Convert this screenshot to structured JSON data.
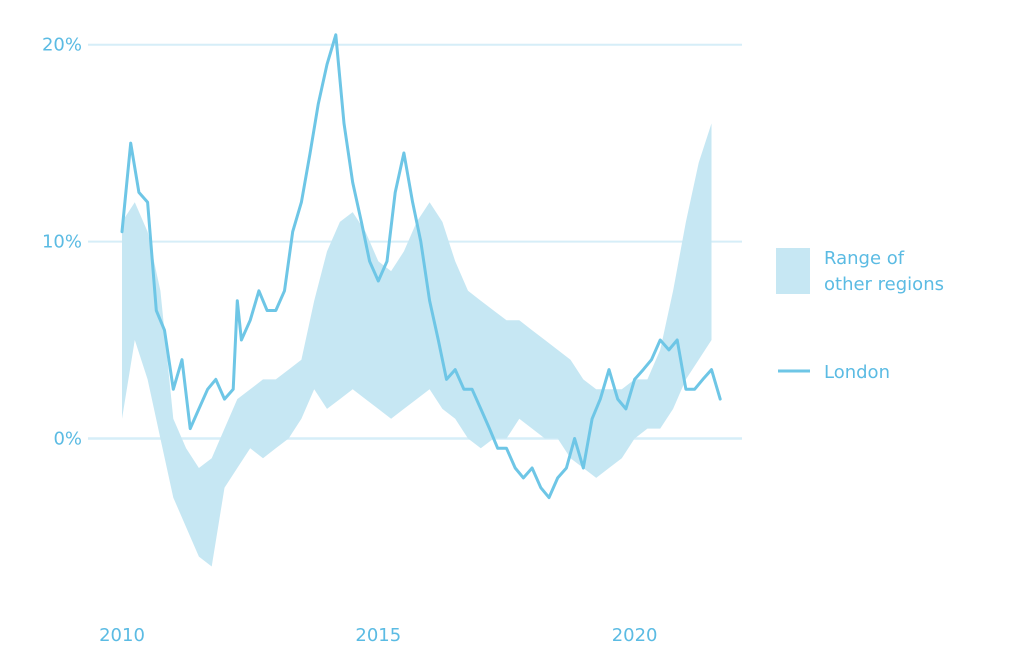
{
  "chart_data": {
    "type": "area",
    "title": "",
    "xlabel": "",
    "ylabel": "",
    "xlim": [
      2010,
      2021.9
    ],
    "ylim": [
      -8,
      21
    ],
    "y_ticks": [
      {
        "value": 0,
        "label": "0%"
      },
      {
        "value": 10,
        "label": "10%"
      },
      {
        "value": 20,
        "label": "20%"
      }
    ],
    "x_ticks": [
      {
        "value": 2010,
        "label": "2010"
      },
      {
        "value": 2015,
        "label": "2015"
      },
      {
        "value": 2020,
        "label": "2020"
      }
    ],
    "grid": true,
    "legend_position": "right",
    "colors": {
      "range": "#c6e7f3",
      "line": "#6ec6e6",
      "text": "#5bbbe3",
      "grid": "#d6eef8"
    },
    "series": [
      {
        "name": "Range of other regions",
        "kind": "band",
        "x": [
          2010.0,
          2010.25,
          2010.5,
          2010.75,
          2011.0,
          2011.25,
          2011.5,
          2011.75,
          2012.0,
          2012.25,
          2012.5,
          2012.75,
          2013.0,
          2013.25,
          2013.5,
          2013.75,
          2014.0,
          2014.25,
          2014.5,
          2014.75,
          2015.0,
          2015.25,
          2015.5,
          2015.75,
          2016.0,
          2016.25,
          2016.5,
          2016.75,
          2017.0,
          2017.25,
          2017.5,
          2017.75,
          2018.0,
          2018.25,
          2018.5,
          2018.75,
          2019.0,
          2019.25,
          2019.5,
          2019.75,
          2020.0,
          2020.25,
          2020.5,
          2020.75,
          2021.0,
          2021.25,
          2021.5
        ],
        "low": [
          1.0,
          5.0,
          3.0,
          0.0,
          -3.0,
          -4.5,
          -6.0,
          -6.5,
          -2.5,
          -1.5,
          -0.5,
          -1.0,
          -0.5,
          0.0,
          1.0,
          2.5,
          1.5,
          2.0,
          2.5,
          2.0,
          1.5,
          1.0,
          1.5,
          2.0,
          2.5,
          1.5,
          1.0,
          0.0,
          -0.5,
          0.0,
          0.0,
          1.0,
          0.5,
          0.0,
          0.0,
          -1.0,
          -1.5,
          -2.0,
          -1.5,
          -1.0,
          0.0,
          0.5,
          0.5,
          1.5,
          3.0,
          4.0,
          5.0
        ],
        "high": [
          11.0,
          12.0,
          10.5,
          7.5,
          1.0,
          -0.5,
          -1.5,
          -1.0,
          0.5,
          2.0,
          2.5,
          3.0,
          3.0,
          3.5,
          4.0,
          7.0,
          9.5,
          11.0,
          11.5,
          10.5,
          9.0,
          8.5,
          9.5,
          11.0,
          12.0,
          11.0,
          9.0,
          7.5,
          7.0,
          6.5,
          6.0,
          6.0,
          5.5,
          5.0,
          4.5,
          4.0,
          3.0,
          2.5,
          2.5,
          2.5,
          3.0,
          3.0,
          4.5,
          7.5,
          11.0,
          14.0,
          16.0
        ]
      },
      {
        "name": "London",
        "kind": "line",
        "x": [
          2010.0,
          2010.17,
          2010.33,
          2010.5,
          2010.67,
          2010.83,
          2011.0,
          2011.17,
          2011.33,
          2011.5,
          2011.67,
          2011.83,
          2012.0,
          2012.17,
          2012.25,
          2012.33,
          2012.5,
          2012.67,
          2012.83,
          2013.0,
          2013.17,
          2013.33,
          2013.5,
          2013.67,
          2013.83,
          2014.0,
          2014.17,
          2014.33,
          2014.5,
          2014.67,
          2014.83,
          2015.0,
          2015.17,
          2015.33,
          2015.5,
          2015.67,
          2015.83,
          2016.0,
          2016.17,
          2016.33,
          2016.5,
          2016.67,
          2016.83,
          2017.0,
          2017.17,
          2017.33,
          2017.5,
          2017.67,
          2017.83,
          2018.0,
          2018.17,
          2018.33,
          2018.5,
          2018.67,
          2018.83,
          2019.0,
          2019.17,
          2019.33,
          2019.5,
          2019.67,
          2019.83,
          2020.0,
          2020.17,
          2020.33,
          2020.5,
          2020.67,
          2020.83,
          2021.0,
          2021.17,
          2021.33,
          2021.5,
          2021.67
        ],
        "y": [
          10.5,
          15.0,
          12.5,
          12.0,
          6.5,
          5.5,
          2.5,
          4.0,
          0.5,
          1.5,
          2.5,
          3.0,
          2.0,
          2.5,
          7.0,
          5.0,
          6.0,
          7.5,
          6.5,
          6.5,
          7.5,
          10.5,
          12.0,
          14.5,
          17.0,
          19.0,
          20.5,
          16.0,
          13.0,
          11.0,
          9.0,
          8.0,
          9.0,
          12.5,
          14.5,
          12.0,
          10.0,
          7.0,
          5.0,
          3.0,
          3.5,
          2.5,
          2.5,
          1.5,
          0.5,
          -0.5,
          -0.5,
          -1.5,
          -2.0,
          -1.5,
          -2.5,
          -3.0,
          -2.0,
          -1.5,
          0.0,
          -1.5,
          1.0,
          2.0,
          3.5,
          2.0,
          1.5,
          3.0,
          3.5,
          4.0,
          5.0,
          4.5,
          5.0,
          2.5,
          2.5,
          3.0,
          3.5,
          2.0
        ]
      }
    ]
  }
}
